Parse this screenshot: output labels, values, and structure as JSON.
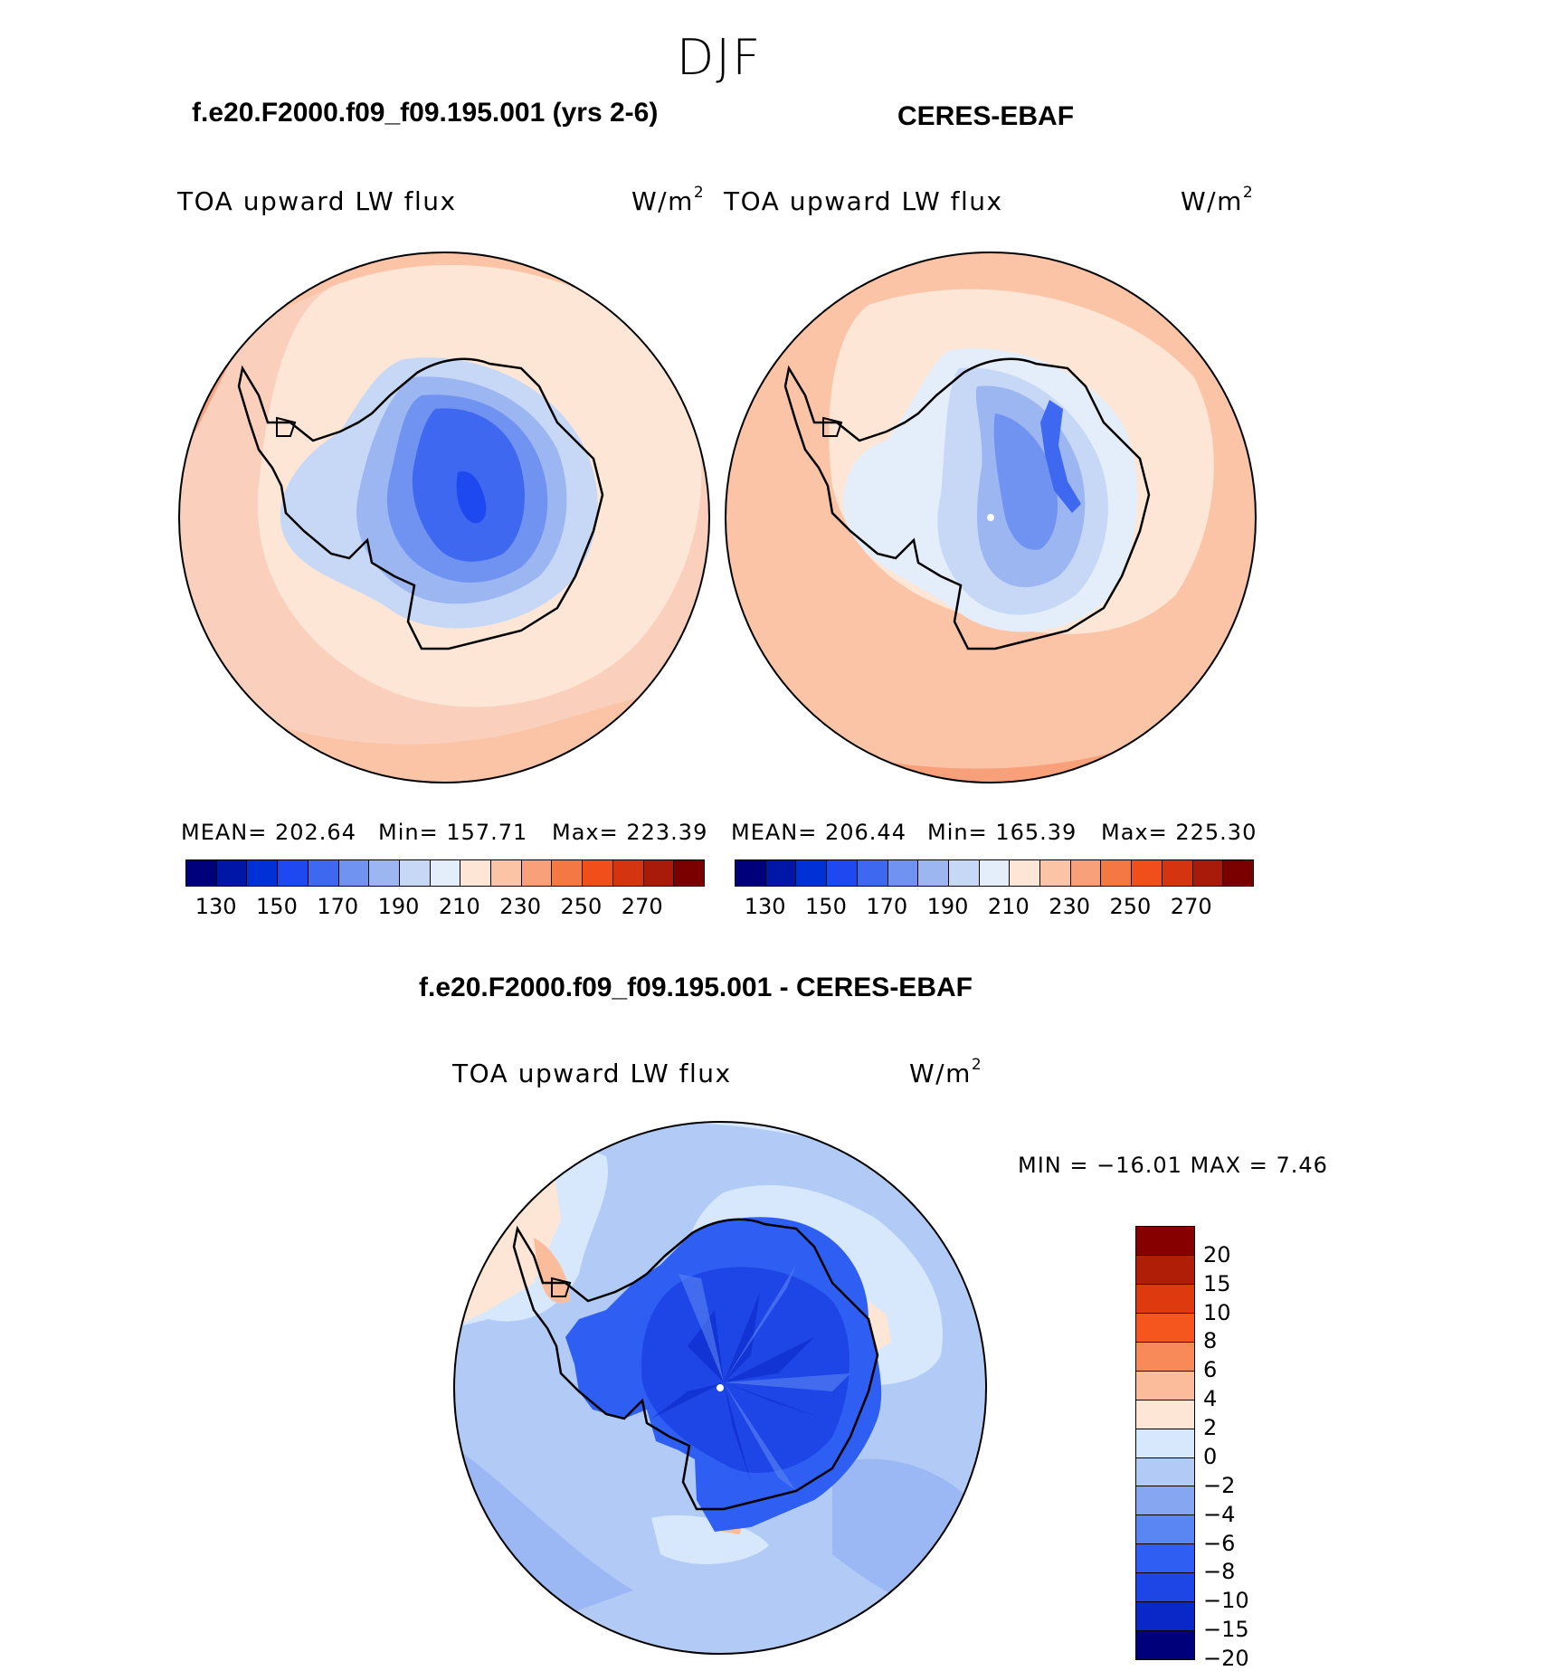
{
  "page_title": "DJF",
  "top_left": {
    "title": "f.e20.F2000.f09_f09.195.001 (yrs 2-6)",
    "variable": "TOA upward LW flux",
    "units": "W/m",
    "units_exp": "2",
    "mean": "MEAN=  202.64",
    "min": "Min=  157.71",
    "max": "Max=  223.39"
  },
  "top_right": {
    "title": "CERES-EBAF",
    "variable": "TOA upward LW flux",
    "units": "W/m",
    "units_exp": "2",
    "mean": "MEAN=  206.44",
    "min": "Min=  165.39",
    "max": "Max=  225.30"
  },
  "bottom": {
    "title": "f.e20.F2000.f09_f09.195.001 - CERES-EBAF",
    "variable": "TOA upward LW flux",
    "units": "W/m",
    "units_exp": "2",
    "minmax": "MIN  =  −16.01  MAX  =     7.46"
  },
  "abs_colorbar": {
    "colors": [
      "#00007a",
      "#0016a6",
      "#0031d6",
      "#1e48f0",
      "#3f68f0",
      "#7092f0",
      "#9cb6f2",
      "#c6d8f6",
      "#e4eefa",
      "#fde6d6",
      "#fbc4a6",
      "#f8a07a",
      "#f47844",
      "#f04e1a",
      "#d43410",
      "#a81a0a",
      "#7a0000"
    ],
    "tick_labels": [
      "130",
      "150",
      "170",
      "190",
      "210",
      "230",
      "250",
      "270"
    ]
  },
  "diff_colorbar": {
    "colors": [
      "#00007a",
      "#0a28c8",
      "#1e46e6",
      "#2e5ef2",
      "#5a86f2",
      "#86a6f2",
      "#b2cbf6",
      "#d8e8fc",
      "#fde6d6",
      "#fbbc9c",
      "#f88a5a",
      "#f4561e",
      "#de3a10",
      "#b01e08",
      "#860000"
    ],
    "tick_labels": [
      "20",
      "15",
      "10",
      "8",
      "6",
      "4",
      "2",
      "0",
      "−2",
      "−4",
      "−6",
      "−8",
      "−10",
      "−15",
      "−20"
    ]
  }
}
